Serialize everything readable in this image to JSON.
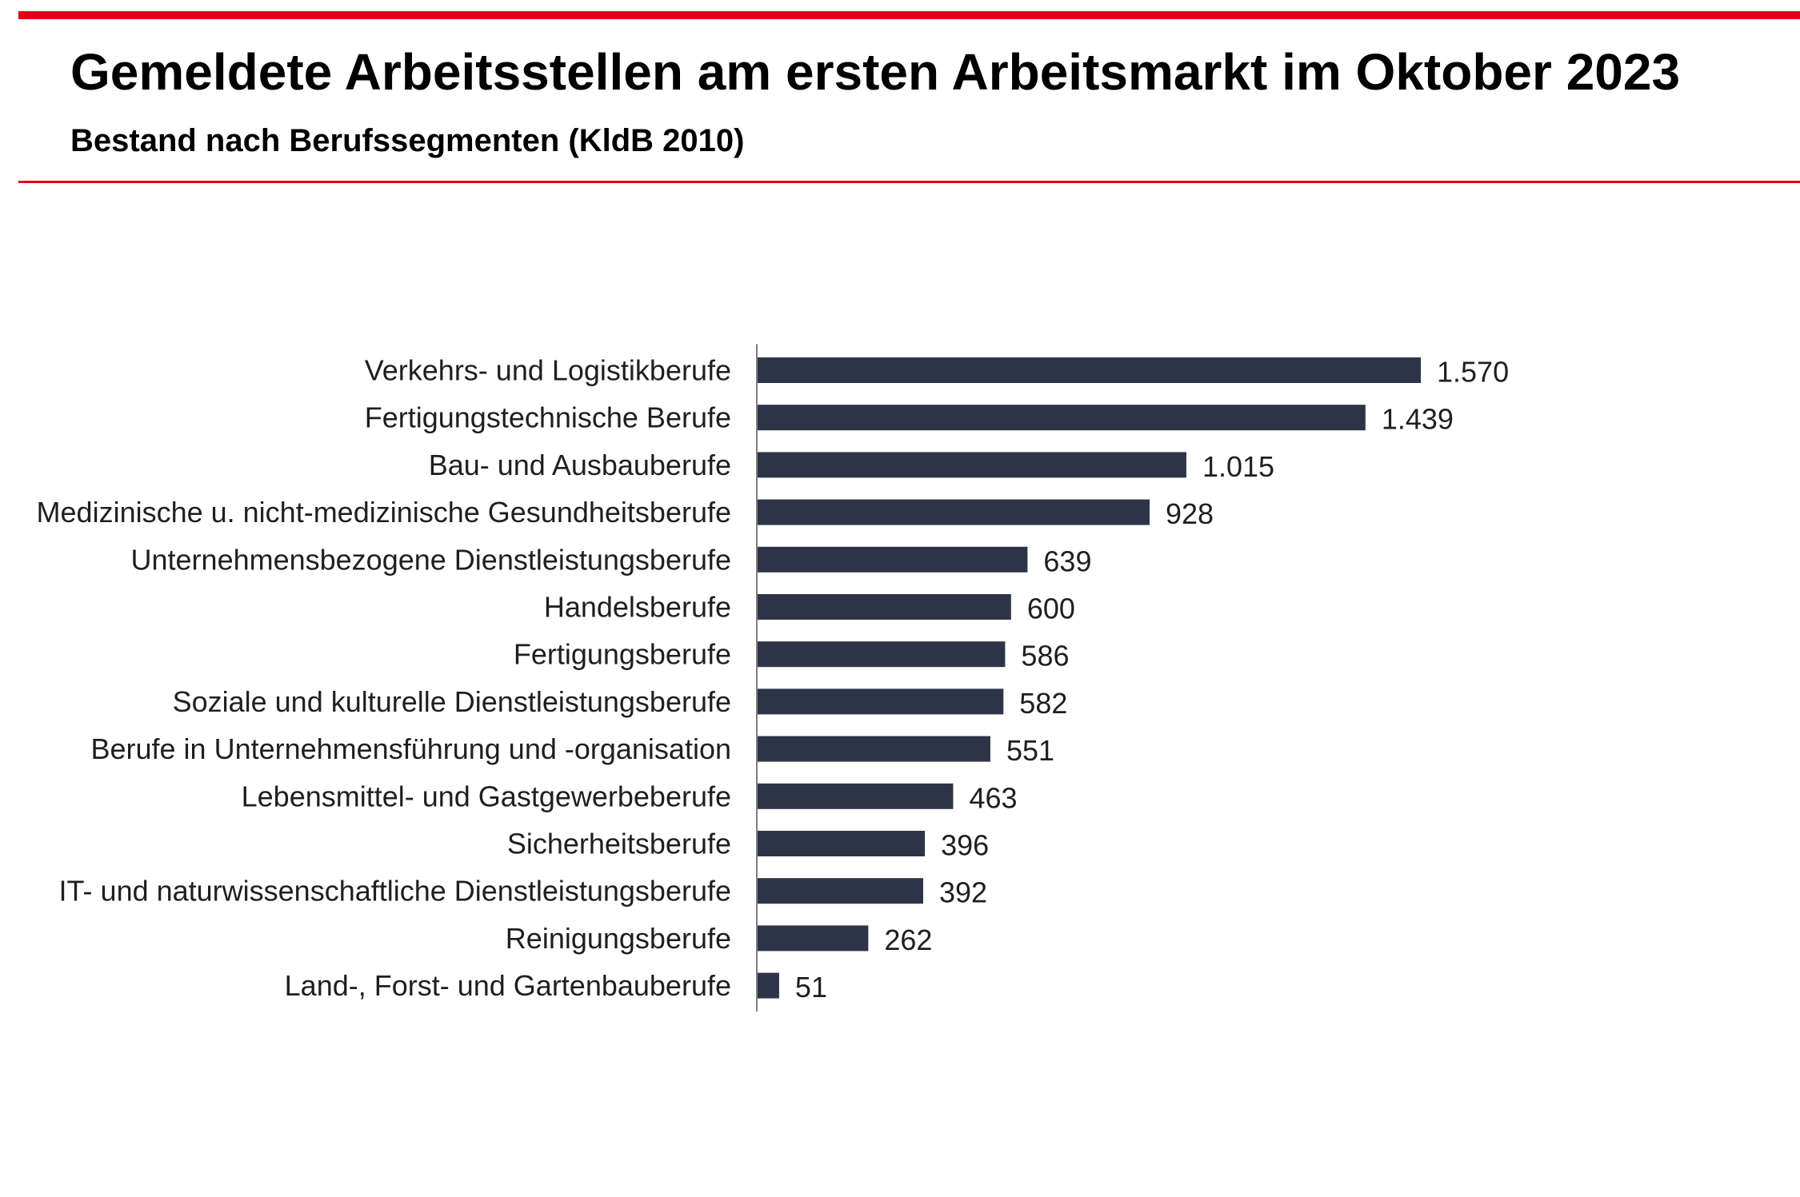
{
  "header": {
    "title": "Gemeldete Arbeitsstellen am ersten Arbeitsmarkt im Oktober 2023",
    "subtitle": "Bestand nach Berufssegmenten (KldB 2010)"
  },
  "colors": {
    "accent": "#e2001a",
    "bar": "#2e3448",
    "axis": "#7f7f7f",
    "text": "#1f1f1f"
  },
  "chart_data": {
    "type": "bar",
    "orientation": "horizontal",
    "title": "Gemeldete Arbeitsstellen am ersten Arbeitsmarkt im Oktober 2023",
    "subtitle": "Bestand nach Berufssegmenten (KldB 2010)",
    "xlabel": "",
    "ylabel": "",
    "xlim": [
      0,
      1570
    ],
    "grid": false,
    "legend": "none",
    "categories": [
      "Verkehrs- und Logistikberufe",
      "Fertigungstechnische Berufe",
      "Bau- und Ausbauberufe",
      "Medizinische u. nicht-medizinische Gesundheitsberufe",
      "Unternehmensbezogene Dienstleistungsberufe",
      "Handelsberufe",
      "Fertigungsberufe",
      "Soziale und kulturelle Dienstleistungsberufe",
      "Berufe in Unternehmensführung und -organisation",
      "Lebensmittel- und Gastgewerbeberufe",
      "Sicherheitsberufe",
      "IT- und naturwissenschaftliche Dienstleistungsberufe",
      "Reinigungsberufe",
      "Land-, Forst- und Gartenbauberufe"
    ],
    "values": [
      1570,
      1439,
      1015,
      928,
      639,
      600,
      586,
      582,
      551,
      463,
      396,
      392,
      262,
      51
    ],
    "value_labels": [
      "1.570",
      "1.439",
      "1.015",
      "928",
      "639",
      "600",
      "586",
      "582",
      "551",
      "463",
      "396",
      "392",
      "262",
      "51"
    ]
  }
}
